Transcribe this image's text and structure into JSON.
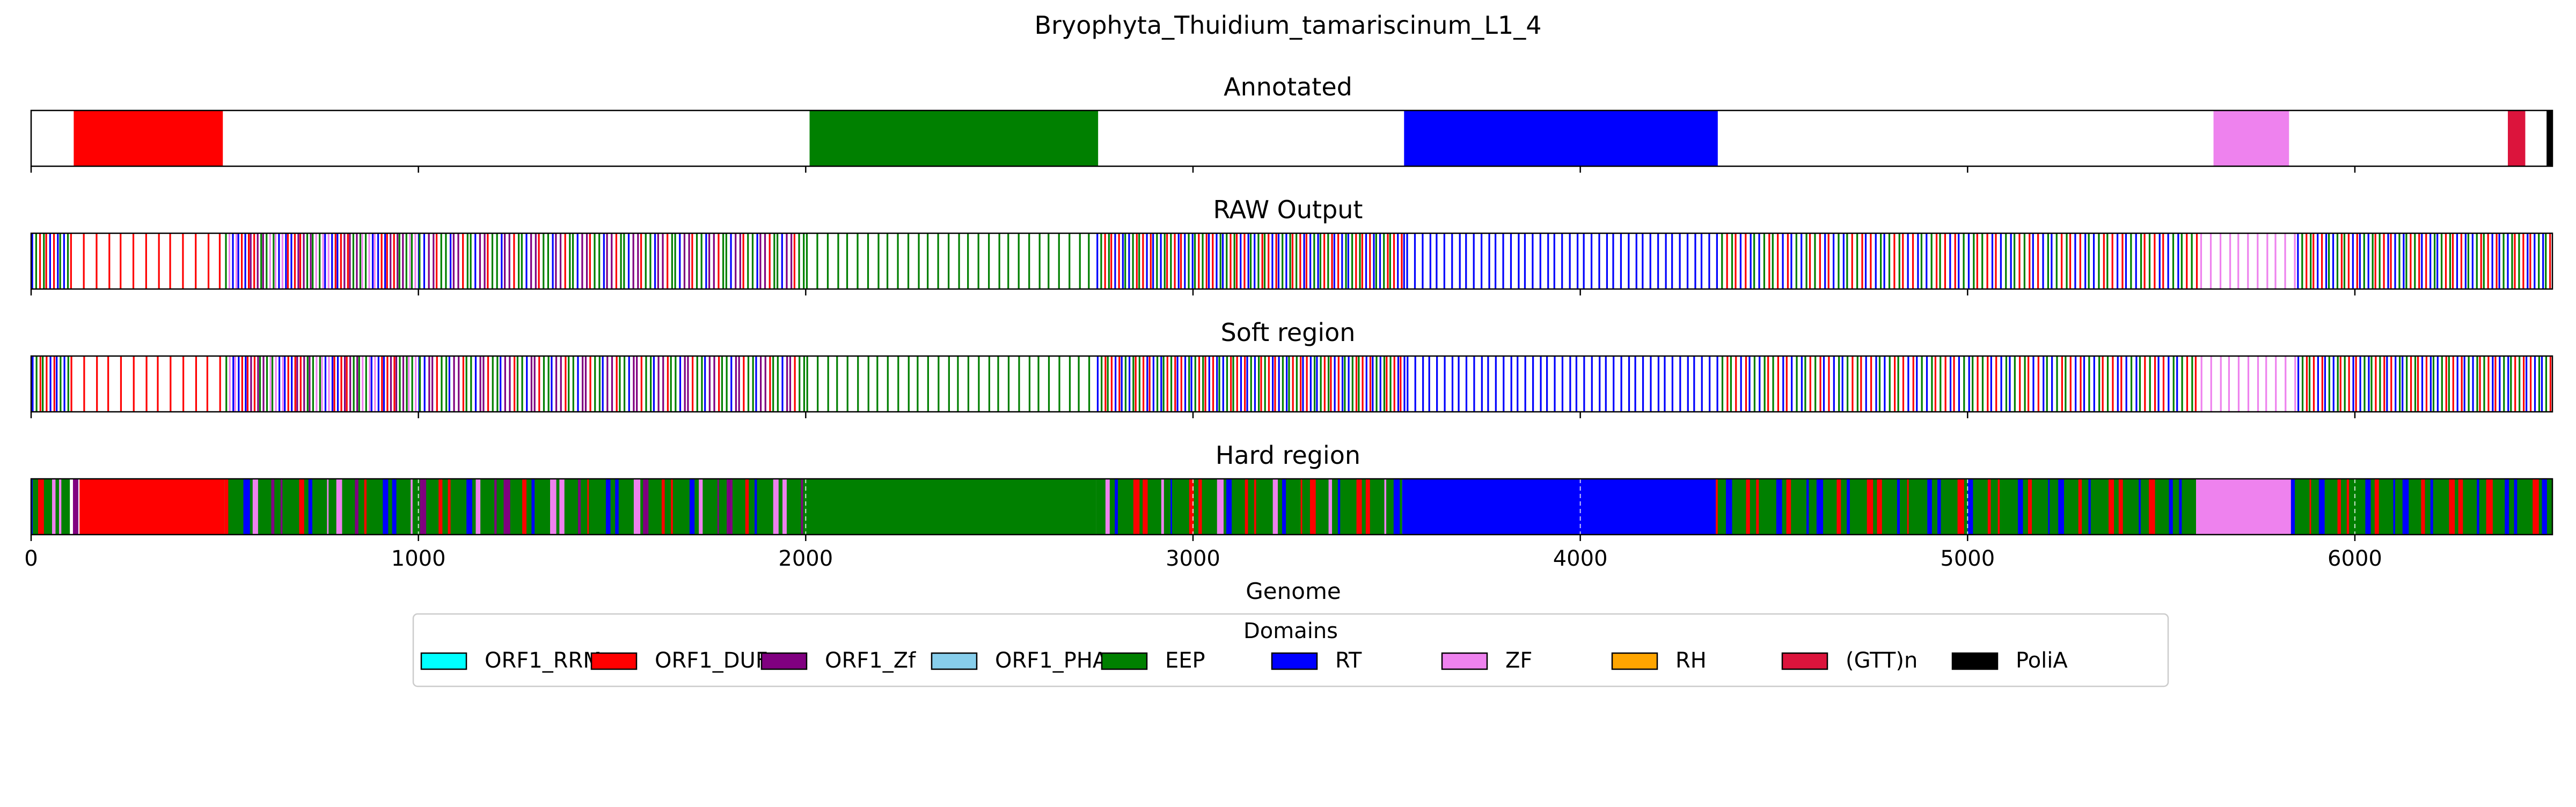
{
  "figure": {
    "title": "Bryophyta_Thuidium_tamariscinum_L1_4"
  },
  "chart_data": {
    "type": "annotation-track",
    "xlabel": "Genome",
    "xlim": [
      0,
      6510
    ],
    "xticks": [
      0,
      1000,
      2000,
      3000,
      4000,
      5000,
      6000
    ],
    "colors": {
      "ORF1_RRM": "#00ffff",
      "ORF1_DUF": "#ff0000",
      "ORF1_Zf": "#800080",
      "ORF1_PHA": "#87ceeb",
      "EEP": "#008000",
      "RT": "#0000ff",
      "ZF": "#ee82ee",
      "RH": "#ffa500",
      "(GTT)n": "#dc143c",
      "PoliA": "#000000"
    },
    "legend": {
      "title": "Domains",
      "position": "bottom-center",
      "entries": [
        "ORF1_RRM",
        "ORF1_DUF",
        "ORF1_Zf",
        "ORF1_PHA",
        "EEP",
        "RT",
        "ZF",
        "RH",
        "(GTT)n",
        "PoliA"
      ]
    },
    "annotated": [
      {
        "domain": "ORF1_DUF",
        "start": 110,
        "end": 495
      },
      {
        "domain": "EEP",
        "start": 2010,
        "end": 2755
      },
      {
        "domain": "RT",
        "start": 3545,
        "end": 4355
      },
      {
        "domain": "ZF",
        "start": 5635,
        "end": 5830
      },
      {
        "domain": "(GTT)n",
        "start": 6395,
        "end": 6440
      },
      {
        "domain": "PoliA",
        "start": 6495,
        "end": 6510
      }
    ],
    "raw_line_regions": [
      {
        "start": 0,
        "end": 100,
        "domains": [
          "RT",
          "EEP",
          "ORF1_DUF"
        ],
        "step": 9
      },
      {
        "start": 100,
        "end": 500,
        "domains": [
          "ORF1_DUF"
        ],
        "step": 32
      },
      {
        "start": 500,
        "end": 1000,
        "domains": [
          "RT",
          "EEP",
          "ORF1_DUF",
          "ZF",
          "ORF1_Zf"
        ],
        "step": 8
      },
      {
        "start": 1000,
        "end": 2000,
        "domains": [
          "RT",
          "EEP",
          "ORF1_DUF",
          "ORF1_Zf"
        ],
        "step": 11
      },
      {
        "start": 2000,
        "end": 2750,
        "domains": [
          "EEP"
        ],
        "step": 26
      },
      {
        "start": 2750,
        "end": 3550,
        "domains": [
          "RT",
          "EEP",
          "ORF1_DUF"
        ],
        "step": 9
      },
      {
        "start": 3550,
        "end": 4350,
        "domains": [
          "RT"
        ],
        "step": 19
      },
      {
        "start": 4350,
        "end": 5600,
        "domains": [
          "RT",
          "EEP",
          "ORF1_DUF"
        ],
        "step": 12
      },
      {
        "start": 5600,
        "end": 5850,
        "domains": [
          "ZF"
        ],
        "step": 24
      },
      {
        "start": 5850,
        "end": 6510,
        "domains": [
          "RT",
          "EEP",
          "ORF1_DUF"
        ],
        "step": 10
      }
    ],
    "hard_region_base": [
      {
        "domain": "EEP",
        "start": 0,
        "end": 100
      },
      {
        "domain": "ORF1_DUF",
        "start": 125,
        "end": 500
      },
      {
        "domain": "EEP",
        "start": 500,
        "end": 2000
      },
      {
        "domain": "EEP",
        "start": 2000,
        "end": 2750
      },
      {
        "domain": "EEP",
        "start": 2750,
        "end": 3540
      },
      {
        "domain": "RT",
        "start": 3540,
        "end": 4350
      },
      {
        "domain": "EEP",
        "start": 4350,
        "end": 5590
      },
      {
        "domain": "ZF",
        "start": 5590,
        "end": 5835
      },
      {
        "domain": "EEP",
        "start": 5835,
        "end": 6510
      }
    ],
    "hard_mixed_regions": [
      {
        "start": 0,
        "end": 125,
        "domains": [
          "RT",
          "ORF1_Zf",
          "ZF",
          "ORF1_DUF"
        ],
        "step": 18
      },
      {
        "start": 500,
        "end": 2000,
        "domains": [
          "RT",
          "ORF1_DUF",
          "ORF1_Zf",
          "ZF"
        ],
        "step": 24
      },
      {
        "start": 2750,
        "end": 3540,
        "domains": [
          "RT",
          "ORF1_DUF",
          "ZF"
        ],
        "step": 24
      },
      {
        "start": 4350,
        "end": 5590,
        "domains": [
          "RT",
          "ORF1_DUF"
        ],
        "step": 26
      },
      {
        "start": 5835,
        "end": 6510,
        "domains": [
          "RT",
          "ORF1_DUF"
        ],
        "step": 24
      }
    ]
  },
  "panels": {
    "annotated": {
      "title": "Annotated"
    },
    "raw": {
      "title": "RAW Output"
    },
    "soft": {
      "title": "Soft region"
    },
    "hard": {
      "title": "Hard region"
    }
  }
}
